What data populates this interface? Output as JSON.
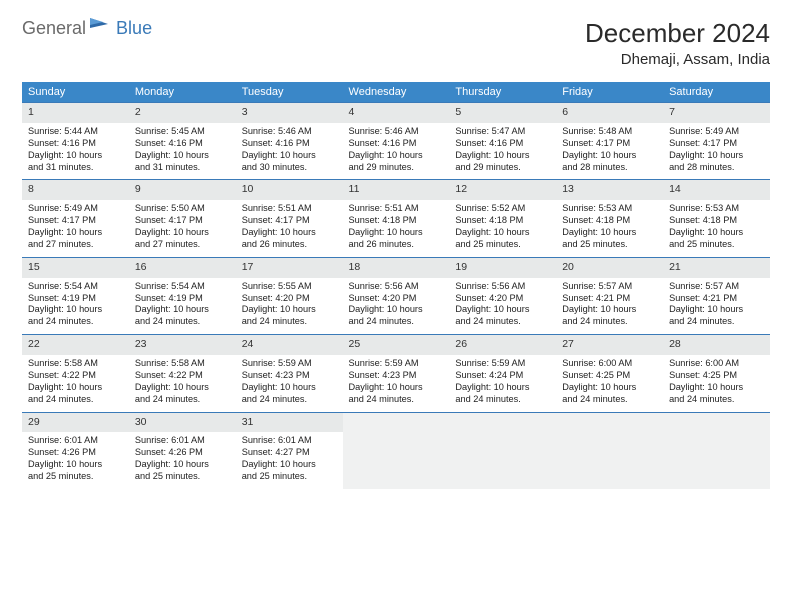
{
  "logo": {
    "text1": "General",
    "text2": "Blue"
  },
  "title": "December 2024",
  "location": "Dhemaji, Assam, India",
  "weekdays": [
    "Sunday",
    "Monday",
    "Tuesday",
    "Wednesday",
    "Thursday",
    "Friday",
    "Saturday"
  ],
  "colors": {
    "header_bg": "#3a87c8",
    "daynum_bg": "#e7e9e9",
    "border": "#3a7ab8",
    "logo_gray": "#6a6a6a",
    "logo_blue": "#3a7ab8",
    "text": "#222222"
  },
  "weeks": [
    [
      {
        "day": "1",
        "sunrise": "Sunrise: 5:44 AM",
        "sunset": "Sunset: 4:16 PM",
        "daylight1": "Daylight: 10 hours",
        "daylight2": "and 31 minutes."
      },
      {
        "day": "2",
        "sunrise": "Sunrise: 5:45 AM",
        "sunset": "Sunset: 4:16 PM",
        "daylight1": "Daylight: 10 hours",
        "daylight2": "and 31 minutes."
      },
      {
        "day": "3",
        "sunrise": "Sunrise: 5:46 AM",
        "sunset": "Sunset: 4:16 PM",
        "daylight1": "Daylight: 10 hours",
        "daylight2": "and 30 minutes."
      },
      {
        "day": "4",
        "sunrise": "Sunrise: 5:46 AM",
        "sunset": "Sunset: 4:16 PM",
        "daylight1": "Daylight: 10 hours",
        "daylight2": "and 29 minutes."
      },
      {
        "day": "5",
        "sunrise": "Sunrise: 5:47 AM",
        "sunset": "Sunset: 4:16 PM",
        "daylight1": "Daylight: 10 hours",
        "daylight2": "and 29 minutes."
      },
      {
        "day": "6",
        "sunrise": "Sunrise: 5:48 AM",
        "sunset": "Sunset: 4:17 PM",
        "daylight1": "Daylight: 10 hours",
        "daylight2": "and 28 minutes."
      },
      {
        "day": "7",
        "sunrise": "Sunrise: 5:49 AM",
        "sunset": "Sunset: 4:17 PM",
        "daylight1": "Daylight: 10 hours",
        "daylight2": "and 28 minutes."
      }
    ],
    [
      {
        "day": "8",
        "sunrise": "Sunrise: 5:49 AM",
        "sunset": "Sunset: 4:17 PM",
        "daylight1": "Daylight: 10 hours",
        "daylight2": "and 27 minutes."
      },
      {
        "day": "9",
        "sunrise": "Sunrise: 5:50 AM",
        "sunset": "Sunset: 4:17 PM",
        "daylight1": "Daylight: 10 hours",
        "daylight2": "and 27 minutes."
      },
      {
        "day": "10",
        "sunrise": "Sunrise: 5:51 AM",
        "sunset": "Sunset: 4:17 PM",
        "daylight1": "Daylight: 10 hours",
        "daylight2": "and 26 minutes."
      },
      {
        "day": "11",
        "sunrise": "Sunrise: 5:51 AM",
        "sunset": "Sunset: 4:18 PM",
        "daylight1": "Daylight: 10 hours",
        "daylight2": "and 26 minutes."
      },
      {
        "day": "12",
        "sunrise": "Sunrise: 5:52 AM",
        "sunset": "Sunset: 4:18 PM",
        "daylight1": "Daylight: 10 hours",
        "daylight2": "and 25 minutes."
      },
      {
        "day": "13",
        "sunrise": "Sunrise: 5:53 AM",
        "sunset": "Sunset: 4:18 PM",
        "daylight1": "Daylight: 10 hours",
        "daylight2": "and 25 minutes."
      },
      {
        "day": "14",
        "sunrise": "Sunrise: 5:53 AM",
        "sunset": "Sunset: 4:18 PM",
        "daylight1": "Daylight: 10 hours",
        "daylight2": "and 25 minutes."
      }
    ],
    [
      {
        "day": "15",
        "sunrise": "Sunrise: 5:54 AM",
        "sunset": "Sunset: 4:19 PM",
        "daylight1": "Daylight: 10 hours",
        "daylight2": "and 24 minutes."
      },
      {
        "day": "16",
        "sunrise": "Sunrise: 5:54 AM",
        "sunset": "Sunset: 4:19 PM",
        "daylight1": "Daylight: 10 hours",
        "daylight2": "and 24 minutes."
      },
      {
        "day": "17",
        "sunrise": "Sunrise: 5:55 AM",
        "sunset": "Sunset: 4:20 PM",
        "daylight1": "Daylight: 10 hours",
        "daylight2": "and 24 minutes."
      },
      {
        "day": "18",
        "sunrise": "Sunrise: 5:56 AM",
        "sunset": "Sunset: 4:20 PM",
        "daylight1": "Daylight: 10 hours",
        "daylight2": "and 24 minutes."
      },
      {
        "day": "19",
        "sunrise": "Sunrise: 5:56 AM",
        "sunset": "Sunset: 4:20 PM",
        "daylight1": "Daylight: 10 hours",
        "daylight2": "and 24 minutes."
      },
      {
        "day": "20",
        "sunrise": "Sunrise: 5:57 AM",
        "sunset": "Sunset: 4:21 PM",
        "daylight1": "Daylight: 10 hours",
        "daylight2": "and 24 minutes."
      },
      {
        "day": "21",
        "sunrise": "Sunrise: 5:57 AM",
        "sunset": "Sunset: 4:21 PM",
        "daylight1": "Daylight: 10 hours",
        "daylight2": "and 24 minutes."
      }
    ],
    [
      {
        "day": "22",
        "sunrise": "Sunrise: 5:58 AM",
        "sunset": "Sunset: 4:22 PM",
        "daylight1": "Daylight: 10 hours",
        "daylight2": "and 24 minutes."
      },
      {
        "day": "23",
        "sunrise": "Sunrise: 5:58 AM",
        "sunset": "Sunset: 4:22 PM",
        "daylight1": "Daylight: 10 hours",
        "daylight2": "and 24 minutes."
      },
      {
        "day": "24",
        "sunrise": "Sunrise: 5:59 AM",
        "sunset": "Sunset: 4:23 PM",
        "daylight1": "Daylight: 10 hours",
        "daylight2": "and 24 minutes."
      },
      {
        "day": "25",
        "sunrise": "Sunrise: 5:59 AM",
        "sunset": "Sunset: 4:23 PM",
        "daylight1": "Daylight: 10 hours",
        "daylight2": "and 24 minutes."
      },
      {
        "day": "26",
        "sunrise": "Sunrise: 5:59 AM",
        "sunset": "Sunset: 4:24 PM",
        "daylight1": "Daylight: 10 hours",
        "daylight2": "and 24 minutes."
      },
      {
        "day": "27",
        "sunrise": "Sunrise: 6:00 AM",
        "sunset": "Sunset: 4:25 PM",
        "daylight1": "Daylight: 10 hours",
        "daylight2": "and 24 minutes."
      },
      {
        "day": "28",
        "sunrise": "Sunrise: 6:00 AM",
        "sunset": "Sunset: 4:25 PM",
        "daylight1": "Daylight: 10 hours",
        "daylight2": "and 24 minutes."
      }
    ],
    [
      {
        "day": "29",
        "sunrise": "Sunrise: 6:01 AM",
        "sunset": "Sunset: 4:26 PM",
        "daylight1": "Daylight: 10 hours",
        "daylight2": "and 25 minutes."
      },
      {
        "day": "30",
        "sunrise": "Sunrise: 6:01 AM",
        "sunset": "Sunset: 4:26 PM",
        "daylight1": "Daylight: 10 hours",
        "daylight2": "and 25 minutes."
      },
      {
        "day": "31",
        "sunrise": "Sunrise: 6:01 AM",
        "sunset": "Sunset: 4:27 PM",
        "daylight1": "Daylight: 10 hours",
        "daylight2": "and 25 minutes."
      },
      {
        "empty": true
      },
      {
        "empty": true
      },
      {
        "empty": true
      },
      {
        "empty": true
      }
    ]
  ]
}
